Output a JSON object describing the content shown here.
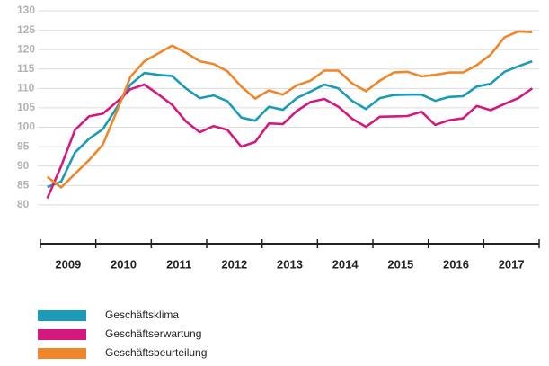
{
  "chart_data": {
    "type": "line",
    "categories": [
      "2009",
      null,
      null,
      null,
      "2010",
      null,
      null,
      null,
      "2011",
      null,
      null,
      null,
      "2012",
      null,
      null,
      null,
      "2013",
      null,
      null,
      null,
      "2014",
      null,
      null,
      null,
      "2015",
      null,
      null,
      null,
      "2016",
      null,
      null,
      null,
      "2017",
      null,
      null,
      null
    ],
    "series": [
      {
        "name": "Geschäftsklima",
        "color": "#1a9bb7",
        "values": [
          84.6,
          86,
          93.5,
          97,
          99.5,
          105,
          111,
          114,
          113.5,
          113.2,
          110,
          107.5,
          108.2,
          106.7,
          102.5,
          101.7,
          105.3,
          104.5,
          107.5,
          109.2,
          111,
          110,
          106.8,
          104.7,
          107.5,
          108.3,
          108.4,
          108.4,
          106.8,
          107.8,
          108,
          110.5,
          111.2,
          114.3,
          115.7,
          117
        ]
      },
      {
        "name": "Geschäftserwartung",
        "color": "#d4197e",
        "values": [
          81.7,
          90,
          99.3,
          102.8,
          103.5,
          106.5,
          109.8,
          111,
          108.5,
          105.8,
          101.5,
          98.7,
          100.3,
          99.3,
          95,
          96.2,
          101,
          100.8,
          104.2,
          106.5,
          107.3,
          105.3,
          102.2,
          100.1,
          102.7,
          102.8,
          102.9,
          104,
          100.6,
          101.8,
          102.3,
          105.5,
          104.4,
          106,
          107.5,
          110
        ]
      },
      {
        "name": "Geschäftsbeurteilung",
        "color": "#f0862a",
        "values": [
          87.2,
          84.5,
          88,
          91.5,
          95.5,
          104,
          113,
          117,
          119,
          121,
          119.2,
          117,
          116.3,
          114.4,
          110.5,
          107.4,
          109.5,
          108.4,
          110.8,
          112,
          114.6,
          114.6,
          111.3,
          109.3,
          112,
          114.1,
          114.3,
          113.1,
          113.5,
          114.1,
          114.1,
          116,
          118.7,
          123.2,
          124.7,
          124.5
        ]
      }
    ],
    "ylim": [
      70,
      130
    ],
    "yticks": [
      80,
      85,
      90,
      95,
      100,
      105,
      110,
      115,
      120,
      125,
      130
    ],
    "grid": true
  }
}
